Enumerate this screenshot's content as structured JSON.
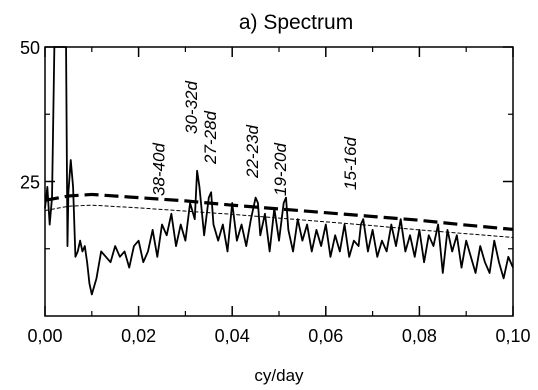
{
  "chart_data": {
    "type": "line",
    "title": "a) Spectrum",
    "xlabel": "cy/day",
    "ylabel": "",
    "xlim": [
      0,
      0.1
    ],
    "ylim": [
      0,
      50
    ],
    "x_ticks": [
      "0,00",
      "0,02",
      "0,04",
      "0,06",
      "0,08",
      "0,10"
    ],
    "y_ticks": [
      "50",
      "25"
    ],
    "y_tick_values": [
      50,
      25
    ],
    "grid": false,
    "annotations": [
      {
        "text": "38-40d",
        "x": 0.0255
      },
      {
        "text": "30-32d",
        "x": 0.0325
      },
      {
        "text": "27-28d",
        "x": 0.0365
      },
      {
        "text": "22-23d",
        "x": 0.0455
      },
      {
        "text": "19-20d",
        "x": 0.0515
      },
      {
        "text": "15-16d",
        "x": 0.0665
      }
    ],
    "series": [
      {
        "style": "solid",
        "x": [
          0.0,
          0.0005,
          0.001,
          0.0015,
          0.002,
          0.0025,
          0.003,
          0.0035,
          0.0045,
          0.0048,
          0.005,
          0.0055,
          0.006,
          0.0065,
          0.007,
          0.0075,
          0.008,
          0.0085,
          0.009,
          0.0095,
          0.01,
          0.011,
          0.012,
          0.013,
          0.014,
          0.015,
          0.016,
          0.017,
          0.018,
          0.019,
          0.02,
          0.021,
          0.022,
          0.023,
          0.024,
          0.025,
          0.026,
          0.027,
          0.028,
          0.029,
          0.03,
          0.031,
          0.032,
          0.0325,
          0.033,
          0.034,
          0.035,
          0.0355,
          0.036,
          0.037,
          0.038,
          0.039,
          0.04,
          0.041,
          0.042,
          0.043,
          0.044,
          0.045,
          0.0455,
          0.046,
          0.047,
          0.048,
          0.049,
          0.05,
          0.051,
          0.0515,
          0.052,
          0.053,
          0.054,
          0.055,
          0.056,
          0.057,
          0.058,
          0.059,
          0.06,
          0.061,
          0.062,
          0.063,
          0.064,
          0.065,
          0.066,
          0.067,
          0.0675,
          0.068,
          0.069,
          0.07,
          0.071,
          0.072,
          0.073,
          0.074,
          0.075,
          0.076,
          0.077,
          0.078,
          0.079,
          0.08,
          0.081,
          0.082,
          0.083,
          0.084,
          0.085,
          0.086,
          0.087,
          0.088,
          0.089,
          0.09,
          0.091,
          0.092,
          0.093,
          0.094,
          0.095,
          0.096,
          0.097,
          0.098,
          0.099,
          0.1
        ],
        "values": [
          20,
          24,
          17,
          22,
          50,
          50,
          50,
          50,
          50,
          13,
          23,
          29,
          24,
          11,
          12,
          14,
          12,
          13,
          10,
          6,
          4,
          7,
          12,
          11,
          10,
          13,
          11,
          12,
          9,
          13,
          14,
          10,
          12,
          16,
          11,
          17,
          15,
          19,
          13,
          17,
          14,
          21,
          18,
          27,
          24,
          15,
          22,
          23,
          17,
          14,
          17,
          12,
          21,
          14,
          17,
          13,
          18,
          22,
          21,
          15,
          19,
          12,
          20,
          14,
          21,
          22,
          16,
          12,
          18,
          14,
          17,
          12,
          16,
          13,
          17,
          11,
          15,
          12,
          17,
          11,
          14,
          13,
          17,
          18,
          12,
          16,
          11,
          14,
          12,
          17,
          13,
          18,
          12,
          15,
          11,
          16,
          10,
          15,
          13,
          17,
          8,
          16,
          12,
          15,
          9,
          14,
          11,
          8,
          13,
          10,
          8,
          14,
          10,
          7,
          11,
          9
        ]
      },
      {
        "style": "dashed-thick",
        "x": [
          0.0,
          0.005,
          0.01,
          0.02,
          0.03,
          0.04,
          0.05,
          0.06,
          0.07,
          0.08,
          0.09,
          0.1
        ],
        "values": [
          21.5,
          22.3,
          22.6,
          22.0,
          21.4,
          20.6,
          19.9,
          19.2,
          18.5,
          17.8,
          16.9,
          16.1
        ]
      },
      {
        "style": "dashed-thin",
        "x": [
          0.0,
          0.005,
          0.01,
          0.02,
          0.03,
          0.04,
          0.05,
          0.06,
          0.07,
          0.08,
          0.09,
          0.1
        ],
        "values": [
          19.6,
          20.4,
          20.6,
          20.1,
          19.5,
          18.9,
          18.2,
          17.5,
          16.8,
          16.0,
          15.3,
          14.6
        ]
      }
    ]
  }
}
